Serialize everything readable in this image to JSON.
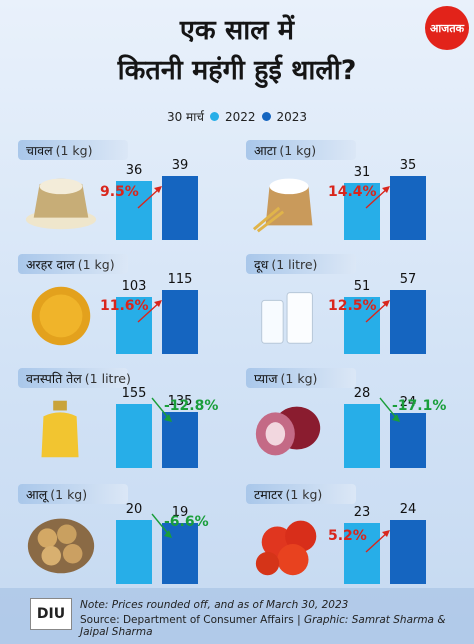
{
  "brand": {
    "logo_text": "आजतक"
  },
  "title": {
    "line1": "एक साल में",
    "line2": "कितनी महंगी हुई थाली?"
  },
  "legend": {
    "date": "30 मार्च",
    "y2022": "2022",
    "y2023": "2023"
  },
  "colors": {
    "y2022": "#27aee8",
    "y2023": "#1565c0",
    "up": "#d9261c",
    "down": "#1a9e3a"
  },
  "chart_data": {
    "type": "bar",
    "categories": [
      "चावल",
      "आटा",
      "अरहर दाल",
      "दूध",
      "वनस्पति तेल",
      "प्याज",
      "आलू",
      "टमाटर"
    ],
    "units": [
      "(1 kg)",
      "(1 kg)",
      "(1 kg)",
      "(1 litre)",
      "(1 litre)",
      "(1 kg)",
      "(1 kg)",
      "(1 kg)"
    ],
    "series": [
      {
        "name": "2022",
        "values": [
          36,
          31,
          103,
          51,
          155,
          28,
          20,
          23
        ]
      },
      {
        "name": "2023",
        "values": [
          39,
          35,
          115,
          57,
          135,
          24,
          19,
          24
        ]
      }
    ],
    "changes": [
      "9.5%",
      "14.4%",
      "11.6%",
      "12.5%",
      "-12.8%",
      "-17.1%",
      "-6.6%",
      "5.2%"
    ],
    "icons": [
      "rice-sack",
      "flour-sack",
      "toor-dal",
      "milk",
      "oil-jar",
      "onion",
      "potato",
      "tomato"
    ]
  },
  "footer": {
    "logo": "DIU",
    "note": "Note: Prices rounded off, and as of March 30, 2023",
    "source": "Source: Department of Consumer Affairs",
    "separator": "|",
    "graphic": "Graphic: Samrat Sharma & Jaipal Sharma"
  }
}
